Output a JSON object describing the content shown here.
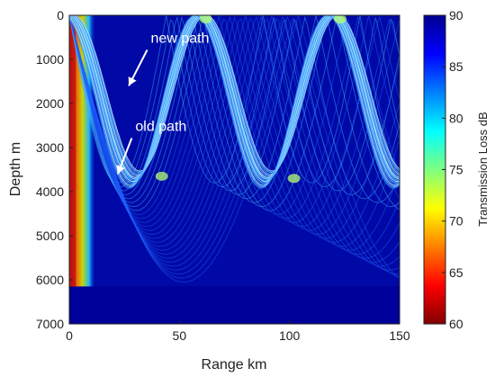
{
  "chart_data": {
    "type": "heatmap",
    "title": "",
    "xlabel": "Range km",
    "ylabel": "Depth m",
    "xlim": [
      0,
      150
    ],
    "ylim": [
      7000,
      0
    ],
    "y_axis_reversed": true,
    "x_ticks": [
      "0",
      "50",
      "100",
      "150"
    ],
    "y_ticks": [
      "0",
      "1000",
      "2000",
      "3000",
      "4000",
      "5000",
      "6000",
      "7000"
    ],
    "colorbar": {
      "label": "Transmission Loss dB",
      "range": [
        60,
        90
      ],
      "ticks": [
        "60",
        "65",
        "70",
        "75",
        "80",
        "85",
        "90"
      ],
      "colormap": "jet",
      "reversed": true
    },
    "annotations": [
      {
        "text": "new path",
        "x": 37,
        "y": 500,
        "arrow_to": [
          27,
          1600
        ]
      },
      {
        "text": "old path",
        "x": 30,
        "y": 2500,
        "arrow_to": [
          22,
          3600
        ]
      }
    ],
    "seafloor_depth_m": 6150,
    "ray_bundles": [
      {
        "name": "upper",
        "turning_depth_m": 3650,
        "period_km": 60,
        "start_km": 2
      },
      {
        "name": "lower",
        "turning_depth_m": 3800,
        "period_km": 60,
        "start_km": 0
      }
    ],
    "background_color": "#00008f"
  }
}
